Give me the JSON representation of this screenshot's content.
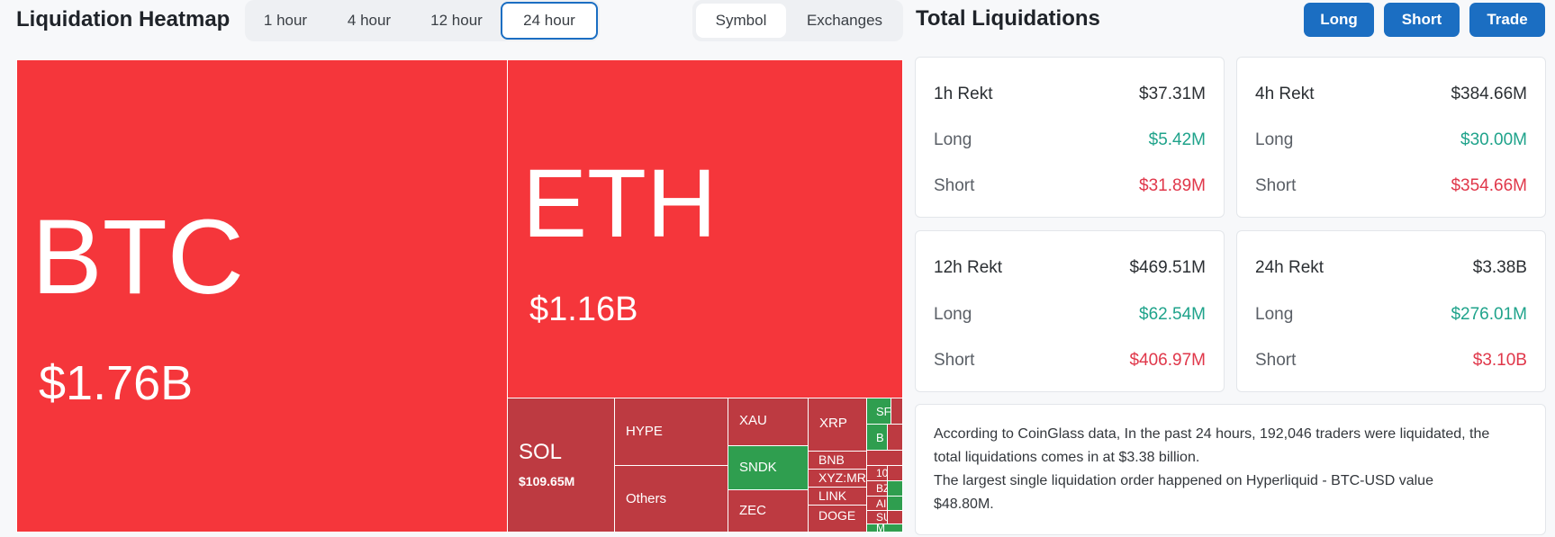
{
  "heatmap": {
    "title": "Liquidation Heatmap",
    "tabs": [
      "1 hour",
      "4 hour",
      "12 hour",
      "24 hour"
    ],
    "active_tab": "24 hour",
    "modes": [
      "Symbol",
      "Exchanges"
    ],
    "active_mode": "Symbol",
    "cells": {
      "btc": {
        "symbol": "BTC",
        "value": "$1.76B"
      },
      "eth": {
        "symbol": "ETH",
        "value": "$1.16B"
      },
      "sol": {
        "symbol": "SOL",
        "value": "$109.65M"
      },
      "hype": {
        "symbol": "HYPE"
      },
      "others": {
        "symbol": "Others"
      },
      "xau": {
        "symbol": "XAU"
      },
      "sndk": {
        "symbol": "SNDK"
      },
      "zec": {
        "symbol": "ZEC"
      },
      "xrp": {
        "symbol": "XRP"
      },
      "bnb": {
        "symbol": "BNB"
      },
      "xyzmr": {
        "symbol": "XYZ:MR"
      },
      "link": {
        "symbol": "LINK"
      },
      "doge": {
        "symbol": "DOGE"
      },
      "sf": {
        "symbol": "SF"
      },
      "b1": {
        "symbol": "B"
      },
      "n10": {
        "symbol": "10"
      },
      "bz": {
        "symbol": "BZ"
      },
      "ai": {
        "symbol": "AI"
      },
      "su": {
        "symbol": "SU"
      },
      "m": {
        "symbol": "M"
      }
    }
  },
  "totals": {
    "title": "Total Liquidations",
    "buttons": {
      "long": "Long",
      "short": "Short",
      "trade": "Trade"
    },
    "cards": [
      {
        "label": "1h Rekt",
        "total": "$37.31M",
        "long_label": "Long",
        "long": "$5.42M",
        "short_label": "Short",
        "short": "$31.89M"
      },
      {
        "label": "4h Rekt",
        "total": "$384.66M",
        "long_label": "Long",
        "long": "$30.00M",
        "short_label": "Short",
        "short": "$354.66M"
      },
      {
        "label": "12h Rekt",
        "total": "$469.51M",
        "long_label": "Long",
        "long": "$62.54M",
        "short_label": "Short",
        "short": "$406.97M"
      },
      {
        "label": "24h Rekt",
        "total": "$3.38B",
        "long_label": "Long",
        "long": "$276.01M",
        "short_label": "Short",
        "short": "$3.10B"
      }
    ],
    "description_1": "According to CoinGlass data, In the past 24 hours, 192,046 traders were liquidated, the",
    "description_2": "total liquidations comes in at $3.38 billion.",
    "description_3": "The largest single liquidation order happened on Hyperliquid - BTC-USD value",
    "description_4": "$48.80M."
  },
  "colors": {
    "accent": "#1b6ec2",
    "heat_red": "#f5363b",
    "heat_dark_red": "#bd3a41",
    "heat_green": "#2f9e4f",
    "long_green": "#1fa38b",
    "short_red": "#e0374a"
  }
}
